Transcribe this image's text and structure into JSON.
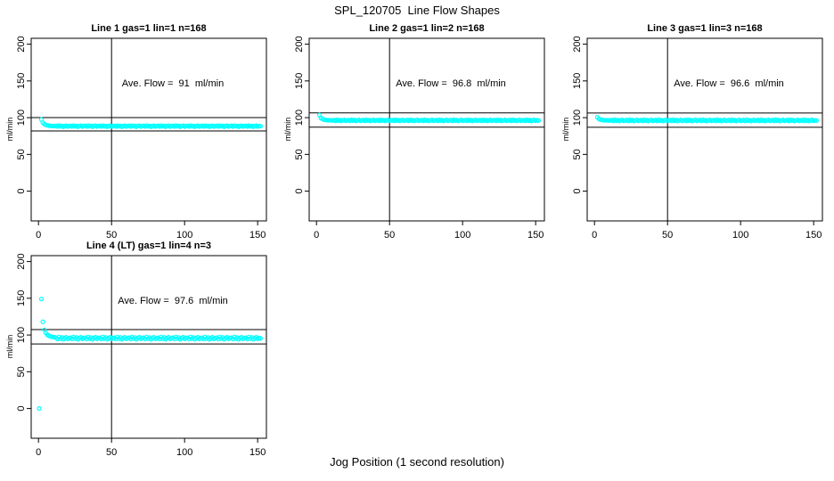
{
  "page": {
    "title": "SPL_120705  Line Flow Shapes",
    "xlabel": "Jog Position (1 second resolution)"
  },
  "chart_data": {
    "type": "scatter",
    "title": "SPL_120705  Line Flow Shapes",
    "xlabel": "Jog Position (1 second resolution)",
    "ylabel": "ml/min",
    "x_ticks": [
      0,
      50,
      100,
      150
    ],
    "y_ticks": [
      0,
      50,
      100,
      150,
      200
    ],
    "xlim": [
      -5,
      156
    ],
    "ylim": [
      -40.5,
      208
    ],
    "grid": false,
    "legend": "none",
    "marker": {
      "shape": "open-circle",
      "color": "#00FFFF",
      "radius": 2
    },
    "ref_line_color": "#000000",
    "panels": [
      {
        "title": "Line 1 gas=1 lin=1 n=168",
        "annotation": "Ave. Flow =  91  ml/min",
        "ave_flow": 91,
        "hlines": [
          100.1,
          81.9
        ],
        "vline": 50,
        "x_start": 2,
        "x_step": 1,
        "extra_points": [],
        "y": [
          97.5,
          93.2,
          91.3,
          90.2,
          89.6,
          89.2,
          88.9,
          88.7,
          88.6,
          88.5,
          88.9,
          87.9,
          89.3,
          88.2,
          88.8,
          87.7,
          88.6,
          89.1,
          88.0,
          88.5,
          88.9,
          87.9,
          89.3,
          88.2,
          88.8,
          87.7,
          88.6,
          89.1,
          88.0,
          88.5,
          88.9,
          87.9,
          89.3,
          88.2,
          88.8,
          87.7,
          88.6,
          89.1,
          88.0,
          88.5,
          88.9,
          87.9,
          89.3,
          88.2,
          88.8,
          87.7,
          88.6,
          89.1,
          88.0,
          88.5,
          88.9,
          87.9,
          89.3,
          88.2,
          88.8,
          87.7,
          88.6,
          89.1,
          88.0,
          88.5,
          88.9,
          87.9,
          89.3,
          88.2,
          88.8,
          87.7,
          88.6,
          89.1,
          88.0,
          88.5,
          88.9,
          87.9,
          89.3,
          88.2,
          88.8,
          87.7,
          88.6,
          89.1,
          88.0,
          88.5,
          88.9,
          87.9,
          89.3,
          88.2,
          88.8,
          87.7,
          88.6,
          89.1,
          88.0,
          88.5,
          88.9,
          87.9,
          89.3,
          88.2,
          88.8,
          87.7,
          88.6,
          89.1,
          88.0,
          88.5,
          88.9,
          87.9,
          89.3,
          88.2,
          88.8,
          87.7,
          88.6,
          89.1,
          88.0,
          88.5,
          88.9,
          87.9,
          89.3,
          88.2,
          88.8,
          87.7,
          88.6,
          89.1,
          88.0,
          88.5,
          88.9,
          87.9,
          89.3,
          88.2,
          88.8,
          87.7,
          88.6,
          89.1,
          88.0,
          88.5,
          88.9,
          87.9,
          89.3,
          88.2,
          88.8,
          87.7,
          88.6,
          89.1,
          88.0,
          88.5,
          88.9,
          87.9,
          89.3,
          88.2,
          88.8,
          87.7,
          88.6,
          89.1,
          88.0,
          88.5,
          88.4
        ]
      },
      {
        "title": "Line 2 gas=1 lin=2 n=168",
        "annotation": "Ave. Flow =  96.8  ml/min",
        "ave_flow": 96.8,
        "hlines": [
          106.5,
          87.1
        ],
        "vline": 50,
        "x_start": 2,
        "x_step": 1,
        "extra_points": [],
        "y": [
          103.6,
          99.8,
          98.2,
          97.4,
          96.9,
          96.7,
          96.5,
          96.4,
          96.4,
          96.3,
          96.7,
          95.7,
          97.1,
          96.0,
          96.6,
          95.5,
          96.4,
          96.9,
          95.8,
          96.3,
          96.7,
          95.7,
          97.1,
          96.0,
          96.6,
          95.5,
          96.4,
          96.9,
          95.8,
          96.3,
          96.7,
          95.7,
          97.1,
          96.0,
          96.6,
          95.5,
          96.4,
          96.9,
          95.8,
          96.3,
          96.7,
          95.7,
          97.1,
          96.0,
          96.6,
          95.5,
          96.4,
          96.9,
          95.8,
          96.3,
          96.7,
          95.7,
          97.1,
          96.0,
          96.6,
          95.5,
          96.4,
          96.9,
          95.8,
          96.3,
          96.7,
          95.7,
          97.1,
          96.0,
          96.6,
          95.5,
          96.4,
          96.9,
          95.8,
          96.3,
          96.7,
          95.7,
          97.1,
          96.0,
          96.6,
          95.5,
          96.4,
          96.9,
          95.8,
          96.3,
          96.7,
          95.7,
          97.1,
          96.0,
          96.6,
          95.5,
          96.4,
          96.9,
          95.8,
          96.3,
          96.7,
          95.7,
          97.1,
          96.0,
          96.6,
          95.5,
          96.4,
          96.9,
          95.8,
          96.3,
          96.7,
          95.7,
          97.1,
          96.0,
          96.6,
          95.5,
          96.4,
          96.9,
          95.8,
          96.3,
          96.7,
          95.7,
          97.1,
          96.0,
          96.6,
          95.5,
          96.4,
          96.9,
          95.8,
          96.3,
          96.7,
          95.7,
          97.1,
          96.0,
          96.6,
          95.5,
          96.4,
          96.9,
          95.8,
          96.3,
          96.7,
          95.7,
          97.1,
          96.0,
          96.6,
          95.5,
          96.4,
          96.9,
          95.8,
          96.3,
          96.7,
          95.7,
          97.1,
          96.0,
          96.6,
          95.5,
          96.4,
          96.9,
          95.8,
          96.3,
          96.2
        ]
      },
      {
        "title": "Line 3 gas=1 lin=3 n=168",
        "annotation": "Ave. Flow =  96.6  ml/min",
        "ave_flow": 96.6,
        "hlines": [
          106.3,
          86.9
        ],
        "vline": 50,
        "x_start": 2,
        "x_step": 1,
        "extra_points": [],
        "y": [
          100.6,
          98.4,
          97.4,
          96.9,
          96.6,
          96.5,
          96.4,
          96.3,
          96.3,
          96.2,
          96.8,
          95.5,
          97.2,
          95.9,
          96.6,
          95.3,
          96.4,
          97.0,
          95.7,
          96.2,
          96.8,
          95.5,
          97.2,
          95.9,
          96.6,
          95.3,
          96.4,
          97.0,
          95.7,
          96.2,
          96.8,
          95.5,
          97.2,
          95.9,
          96.6,
          95.3,
          96.4,
          97.0,
          95.7,
          96.2,
          96.8,
          95.5,
          97.2,
          95.9,
          96.6,
          95.3,
          96.4,
          97.0,
          95.7,
          96.2,
          96.8,
          95.5,
          97.2,
          95.9,
          96.6,
          95.3,
          96.4,
          97.0,
          95.7,
          96.2,
          96.8,
          95.5,
          97.2,
          95.9,
          96.6,
          95.3,
          96.4,
          97.0,
          95.7,
          96.2,
          96.8,
          95.5,
          97.2,
          95.9,
          96.6,
          95.3,
          96.4,
          97.0,
          95.7,
          96.2,
          96.8,
          95.5,
          97.2,
          95.9,
          96.6,
          95.3,
          96.4,
          97.0,
          95.7,
          96.2,
          96.8,
          95.5,
          97.2,
          95.9,
          96.6,
          95.3,
          96.4,
          97.0,
          95.7,
          96.2,
          96.8,
          95.5,
          97.2,
          95.9,
          96.6,
          95.3,
          96.4,
          97.0,
          95.7,
          96.2,
          96.8,
          95.5,
          97.2,
          95.9,
          96.6,
          95.3,
          96.4,
          97.0,
          95.7,
          96.2,
          96.8,
          95.5,
          97.2,
          95.9,
          96.6,
          95.3,
          96.4,
          97.0,
          95.7,
          96.2,
          96.8,
          95.5,
          97.2,
          95.9,
          96.6,
          95.3,
          96.4,
          97.0,
          95.7,
          96.2,
          96.8,
          95.5,
          97.2,
          95.9,
          96.6,
          95.3,
          96.4,
          97.0,
          95.7,
          96.2,
          96.1
        ]
      },
      {
        "title": "Line 4 (LT) gas=1 lin=4 n=3",
        "annotation": "Ave. Flow =  97.6  ml/min",
        "ave_flow": 97.6,
        "hlines": [
          107.4,
          87.8
        ],
        "vline": 50,
        "x_start": 2,
        "x_step": 1,
        "extra_points": [
          [
            0.5,
            0
          ]
        ],
        "y": [
          149.0,
          118.0,
          107.0,
          103.0,
          100.5,
          99.0,
          98.2,
          97.6,
          97.2,
          96.9,
          96.4,
          94.6,
          97.3,
          95.0,
          96.6,
          94.2,
          95.9,
          97.0,
          94.8,
          95.7,
          96.4,
          94.6,
          97.3,
          95.0,
          96.6,
          94.2,
          95.9,
          97.0,
          94.8,
          95.7,
          96.4,
          94.6,
          97.3,
          95.0,
          96.6,
          94.2,
          95.9,
          97.0,
          94.8,
          95.7,
          96.4,
          94.6,
          97.3,
          95.0,
          96.6,
          94.2,
          95.9,
          97.0,
          94.8,
          95.7,
          96.4,
          94.6,
          97.3,
          95.0,
          96.6,
          94.2,
          95.9,
          97.0,
          94.8,
          95.7,
          96.4,
          94.6,
          97.3,
          95.0,
          96.6,
          94.2,
          95.9,
          97.0,
          94.8,
          95.7,
          96.4,
          94.6,
          97.3,
          95.0,
          96.6,
          94.2,
          95.9,
          97.0,
          94.8,
          95.7,
          96.4,
          94.6,
          97.3,
          95.0,
          96.6,
          94.2,
          95.9,
          97.0,
          94.8,
          95.7,
          96.4,
          94.6,
          97.3,
          95.0,
          96.6,
          94.2,
          95.9,
          97.0,
          94.8,
          95.7,
          96.4,
          94.6,
          97.3,
          95.0,
          96.6,
          94.2,
          95.9,
          97.0,
          94.8,
          95.7,
          96.4,
          94.6,
          97.3,
          95.0,
          96.6,
          94.2,
          95.9,
          97.0,
          94.8,
          95.7,
          96.4,
          94.6,
          97.3,
          95.0,
          96.6,
          94.2,
          95.9,
          97.0,
          94.8,
          95.7,
          96.4,
          94.6,
          97.3,
          95.0,
          96.6,
          94.2,
          95.9,
          97.0,
          94.8,
          95.7,
          96.4,
          94.6,
          97.3,
          95.0,
          96.6,
          94.2,
          95.9,
          97.0,
          94.8,
          95.7,
          95.4
        ]
      }
    ]
  }
}
